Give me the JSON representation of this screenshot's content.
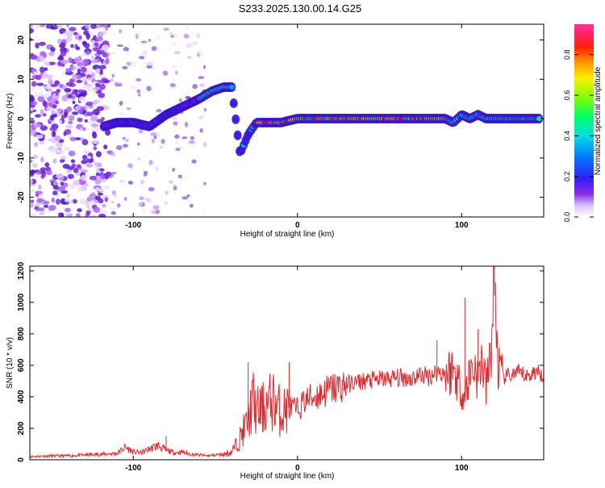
{
  "title": "S233.2025.130.00.14.G25",
  "colors": {
    "snr_line": "#e0282c",
    "spectrum_low": "#9b30ff",
    "spectrum_high": "#ff0000"
  },
  "chart_data": [
    {
      "type": "heatmap",
      "xlabel": "Height of straight line (km)",
      "ylabel": "Frequency (Hz)",
      "xlim": [
        -163,
        150
      ],
      "ylim": [
        -25,
        24
      ],
      "x_ticks": [
        -100,
        0,
        100
      ],
      "y_ticks": [
        -20,
        -10,
        0,
        10,
        20
      ],
      "grid": false,
      "colorbar": {
        "label": "Normalized spectral amplitude",
        "range": [
          0,
          0.95
        ],
        "ticks": [
          0.0,
          0.2,
          0.4,
          0.6,
          0.8
        ]
      },
      "ridge": {
        "description_free_points": true,
        "x": [
          -118,
          -110,
          -100,
          -90,
          -80,
          -70,
          -60,
          -52,
          -45,
          -40,
          -35,
          -30,
          -25,
          -20,
          -10,
          0,
          10,
          20,
          40,
          60,
          80,
          90,
          95,
          100,
          105,
          110,
          115,
          120,
          130,
          140,
          148
        ],
        "y": [
          -2,
          -1,
          -1,
          -2,
          1,
          3,
          5,
          7,
          8,
          8,
          -9,
          -4,
          -1,
          -1,
          -1,
          0,
          0,
          0,
          0,
          0,
          0,
          0,
          -1,
          1,
          0,
          1,
          0,
          0,
          0,
          0,
          0
        ]
      }
    },
    {
      "type": "line",
      "xlabel": "Height of straight line (km)",
      "ylabel": "SNR (10 * v/v)",
      "xlim": [
        -163,
        150
      ],
      "ylim": [
        0,
        1230
      ],
      "x_ticks": [
        -100,
        0,
        100
      ],
      "y_ticks": [
        0,
        200,
        400,
        600,
        800,
        1000,
        1200
      ],
      "grid": false,
      "series": [
        {
          "x": [
            -163,
            -150,
            -140,
            -130,
            -120,
            -110,
            -105,
            -100,
            -95,
            -90,
            -85,
            -80,
            -75,
            -70,
            -65,
            -60,
            -55,
            -50,
            -45,
            -40,
            -35,
            -30,
            -27,
            -25,
            -20,
            -15,
            -10,
            -5,
            0,
            5,
            10,
            15,
            20,
            25,
            30,
            40,
            50,
            60,
            70,
            75,
            80,
            85,
            90,
            95,
            100,
            102,
            105,
            108,
            110,
            112,
            115,
            118,
            120,
            122,
            125,
            130,
            135,
            140,
            145,
            150
          ],
          "y": [
            20,
            25,
            25,
            30,
            35,
            40,
            80,
            50,
            45,
            70,
            90,
            60,
            45,
            50,
            35,
            30,
            25,
            30,
            35,
            50,
            140,
            250,
            380,
            300,
            330,
            380,
            300,
            330,
            320,
            380,
            400,
            420,
            450,
            460,
            480,
            500,
            510,
            520,
            520,
            540,
            530,
            560,
            550,
            570,
            450,
            400,
            550,
            600,
            500,
            650,
            450,
            700,
            1200,
            600,
            520,
            540,
            550,
            530,
            560,
            540
          ]
        }
      ],
      "annotations": [
        {
          "x": -80,
          "y": 150
        },
        {
          "x": -30,
          "y": 620
        },
        {
          "x": -5,
          "y": 620
        },
        {
          "x": 85,
          "y": 760
        },
        {
          "x": 102,
          "y": 1030
        },
        {
          "x": 110,
          "y": 830
        },
        {
          "x": 120,
          "y": 1230
        }
      ]
    }
  ]
}
